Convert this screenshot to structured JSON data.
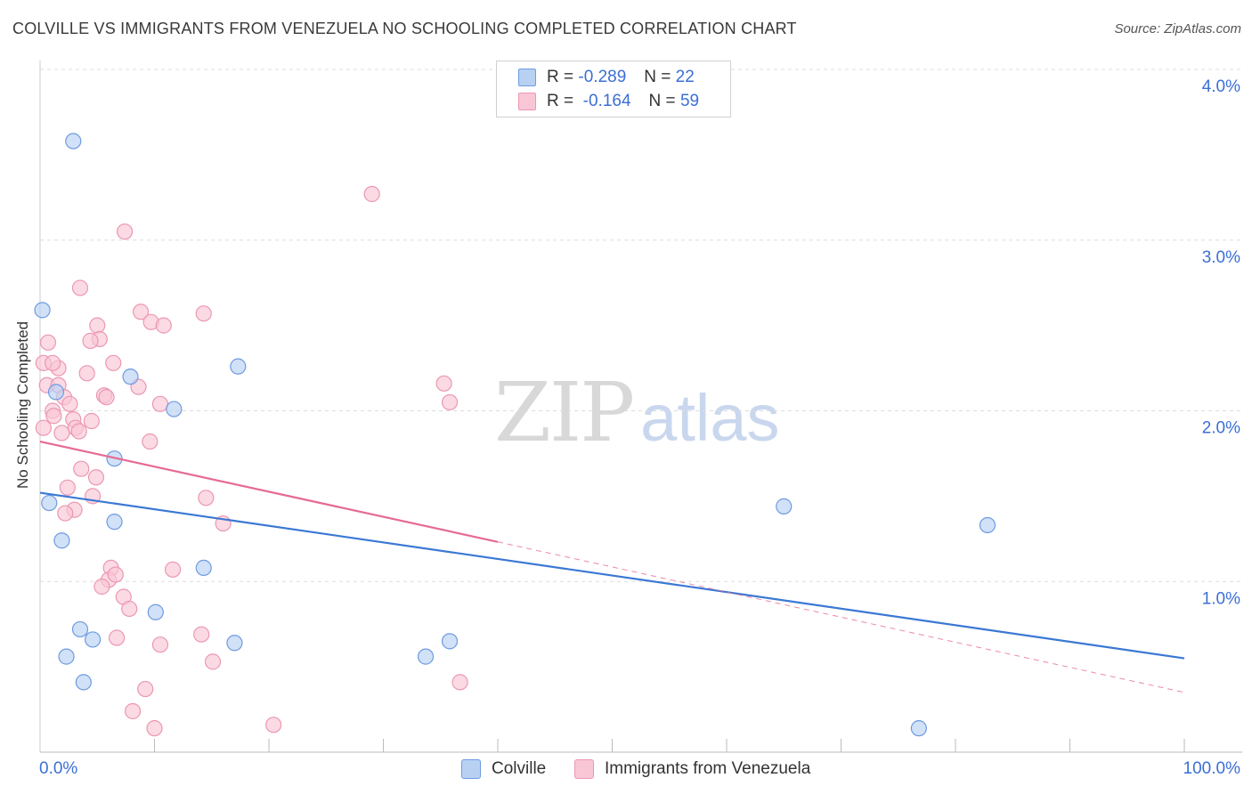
{
  "title": "COLVILLE VS IMMIGRANTS FROM VENEZUELA NO SCHOOLING COMPLETED CORRELATION CHART",
  "source": "Source: ZipAtlas.com",
  "watermark": {
    "zip": "ZIP",
    "atlas": "atlas"
  },
  "legend": {
    "rows": [
      {
        "r_label": "R =",
        "r_value": "-0.289",
        "n_label": "N =",
        "n_value": "22"
      },
      {
        "r_label": "R =",
        "r_value": "-0.164",
        "n_label": "N =",
        "n_value": "59"
      }
    ]
  },
  "bottom_legend": {
    "series1": "Colville",
    "series2": "Immigrants from Venezuela"
  },
  "colors": {
    "series1_fill": "#b8d1f3",
    "series1_stroke": "#6e9be0",
    "series1_line": "#3a78d4",
    "series2_fill": "#f9c6d5",
    "series2_stroke": "#ec97b2",
    "series2_line": "#e66a95",
    "axis_text": "#3b6fd6",
    "grid": "#dddddd"
  },
  "chart_data": {
    "type": "scatter",
    "title": "COLVILLE VS IMMIGRANTS FROM VENEZUELA NO SCHOOLING COMPLETED CORRELATION CHART",
    "xlabel": "",
    "ylabel": "No Schooling Completed",
    "xlim": [
      0,
      100
    ],
    "ylim": [
      0,
      4.0
    ],
    "x_tick_labels": [
      "0.0%",
      "100.0%"
    ],
    "y_ticks": [
      {
        "value": 1.0,
        "label": "1.0%"
      },
      {
        "value": 2.0,
        "label": "2.0%"
      },
      {
        "value": 3.0,
        "label": "3.0%"
      },
      {
        "value": 4.0,
        "label": "4.0%"
      }
    ],
    "grid": true,
    "series": [
      {
        "name": "Colville",
        "r": -0.289,
        "n": 22,
        "trend": {
          "x0": 0,
          "y0": 1.52,
          "x1": 100,
          "y1": 0.55,
          "solid_until": 100
        },
        "points": [
          {
            "x": 2.9,
            "y": 3.58
          },
          {
            "x": 0.2,
            "y": 2.59
          },
          {
            "x": 7.9,
            "y": 2.2
          },
          {
            "x": 17.3,
            "y": 2.26
          },
          {
            "x": 1.4,
            "y": 2.11
          },
          {
            "x": 11.7,
            "y": 2.01
          },
          {
            "x": 6.5,
            "y": 1.72
          },
          {
            "x": 0.8,
            "y": 1.46
          },
          {
            "x": 6.5,
            "y": 1.35
          },
          {
            "x": 1.9,
            "y": 1.24
          },
          {
            "x": 14.3,
            "y": 1.08
          },
          {
            "x": 10.1,
            "y": 0.82
          },
          {
            "x": 3.5,
            "y": 0.72
          },
          {
            "x": 4.6,
            "y": 0.66
          },
          {
            "x": 17.0,
            "y": 0.64
          },
          {
            "x": 2.3,
            "y": 0.56
          },
          {
            "x": 3.8,
            "y": 0.41
          },
          {
            "x": 35.8,
            "y": 0.65
          },
          {
            "x": 33.7,
            "y": 0.56
          },
          {
            "x": 65.0,
            "y": 1.44
          },
          {
            "x": 82.8,
            "y": 1.33
          },
          {
            "x": 76.8,
            "y": 0.14
          }
        ]
      },
      {
        "name": "Immigrants from Venezuela",
        "r": -0.164,
        "n": 59,
        "trend": {
          "x0": 0,
          "y0": 1.82,
          "x1": 100,
          "y1": 0.35,
          "solid_until": 40
        },
        "points": [
          {
            "x": 0.3,
            "y": 2.28
          },
          {
            "x": 0.7,
            "y": 2.4
          },
          {
            "x": 0.6,
            "y": 2.15
          },
          {
            "x": 1.6,
            "y": 2.25
          },
          {
            "x": 1.1,
            "y": 2.28
          },
          {
            "x": 1.6,
            "y": 2.15
          },
          {
            "x": 1.1,
            "y": 2.0
          },
          {
            "x": 1.2,
            "y": 1.97
          },
          {
            "x": 2.1,
            "y": 2.08
          },
          {
            "x": 2.6,
            "y": 2.04
          },
          {
            "x": 2.9,
            "y": 1.95
          },
          {
            "x": 3.1,
            "y": 1.9
          },
          {
            "x": 3.4,
            "y": 1.88
          },
          {
            "x": 0.3,
            "y": 1.9
          },
          {
            "x": 1.9,
            "y": 1.87
          },
          {
            "x": 3.5,
            "y": 2.72
          },
          {
            "x": 4.1,
            "y": 2.22
          },
          {
            "x": 4.5,
            "y": 1.94
          },
          {
            "x": 3.6,
            "y": 1.66
          },
          {
            "x": 4.9,
            "y": 1.61
          },
          {
            "x": 2.4,
            "y": 1.55
          },
          {
            "x": 4.6,
            "y": 1.5
          },
          {
            "x": 3.0,
            "y": 1.42
          },
          {
            "x": 2.2,
            "y": 1.4
          },
          {
            "x": 5.0,
            "y": 2.5
          },
          {
            "x": 5.2,
            "y": 2.42
          },
          {
            "x": 4.4,
            "y": 2.41
          },
          {
            "x": 6.4,
            "y": 2.28
          },
          {
            "x": 5.6,
            "y": 2.09
          },
          {
            "x": 5.8,
            "y": 2.08
          },
          {
            "x": 7.4,
            "y": 3.05
          },
          {
            "x": 8.8,
            "y": 2.58
          },
          {
            "x": 9.7,
            "y": 2.52
          },
          {
            "x": 10.8,
            "y": 2.5
          },
          {
            "x": 14.3,
            "y": 2.57
          },
          {
            "x": 8.6,
            "y": 2.14
          },
          {
            "x": 10.5,
            "y": 2.04
          },
          {
            "x": 9.6,
            "y": 1.82
          },
          {
            "x": 14.5,
            "y": 1.49
          },
          {
            "x": 16.0,
            "y": 1.34
          },
          {
            "x": 6.2,
            "y": 1.08
          },
          {
            "x": 6.0,
            "y": 1.01
          },
          {
            "x": 6.6,
            "y": 1.04
          },
          {
            "x": 5.4,
            "y": 0.97
          },
          {
            "x": 7.3,
            "y": 0.91
          },
          {
            "x": 7.8,
            "y": 0.84
          },
          {
            "x": 11.6,
            "y": 1.07
          },
          {
            "x": 6.7,
            "y": 0.67
          },
          {
            "x": 10.5,
            "y": 0.63
          },
          {
            "x": 14.1,
            "y": 0.69
          },
          {
            "x": 15.1,
            "y": 0.53
          },
          {
            "x": 9.2,
            "y": 0.37
          },
          {
            "x": 8.1,
            "y": 0.24
          },
          {
            "x": 10.0,
            "y": 0.14
          },
          {
            "x": 20.4,
            "y": 0.16
          },
          {
            "x": 29.0,
            "y": 3.27
          },
          {
            "x": 35.3,
            "y": 2.16
          },
          {
            "x": 35.8,
            "y": 2.05
          },
          {
            "x": 36.7,
            "y": 0.41
          }
        ]
      }
    ]
  }
}
